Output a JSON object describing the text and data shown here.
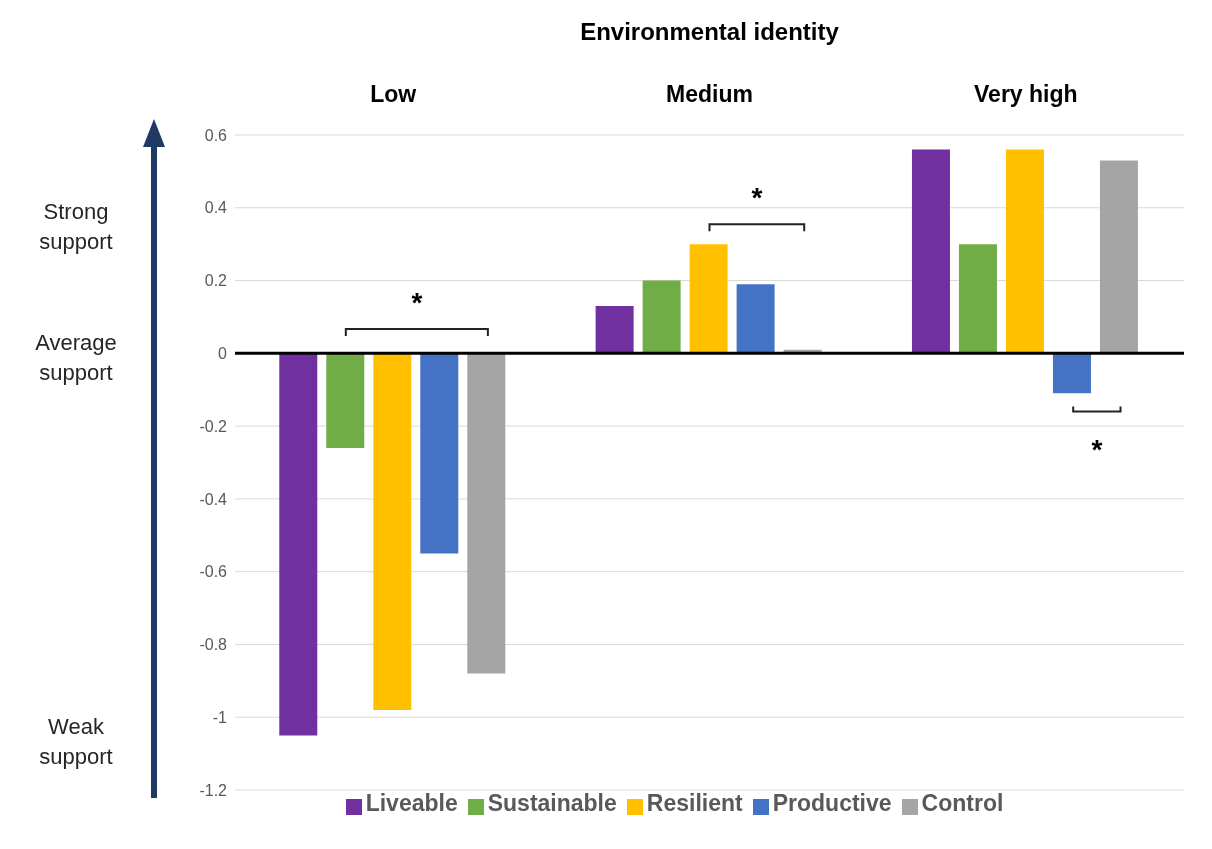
{
  "chart_data": {
    "type": "bar",
    "title": "Environmental identity",
    "categories": [
      "Low",
      "Medium",
      "Very high"
    ],
    "series": [
      {
        "name": "Liveable",
        "color": "#7030a0",
        "values": [
          -1.05,
          0.13,
          0.56
        ]
      },
      {
        "name": "Sustainable",
        "color": "#70ad47",
        "values": [
          -0.26,
          0.2,
          0.3
        ]
      },
      {
        "name": "Resilient",
        "color": "#ffc000",
        "values": [
          -0.98,
          0.3,
          0.56
        ]
      },
      {
        "name": "Productive",
        "color": "#4472c4",
        "values": [
          -0.55,
          0.19,
          -0.11
        ]
      },
      {
        "name": "Control",
        "color": "#a5a5a5",
        "values": [
          -0.88,
          0.01,
          0.53
        ]
      }
    ],
    "ylim": [
      -1.2,
      0.6
    ],
    "yticks": [
      -1.2,
      -1,
      -0.8,
      -0.6,
      -0.4,
      -0.2,
      0,
      0.2,
      0.4,
      0.6
    ],
    "grid": "y",
    "legend": "bottom",
    "ref_lines": [
      {
        "axis": "y",
        "value": 0,
        "color": "#000000"
      }
    ],
    "annotations": [
      "Strong support",
      "Average support",
      "Weak support",
      "*",
      "*",
      "*"
    ]
  }
}
